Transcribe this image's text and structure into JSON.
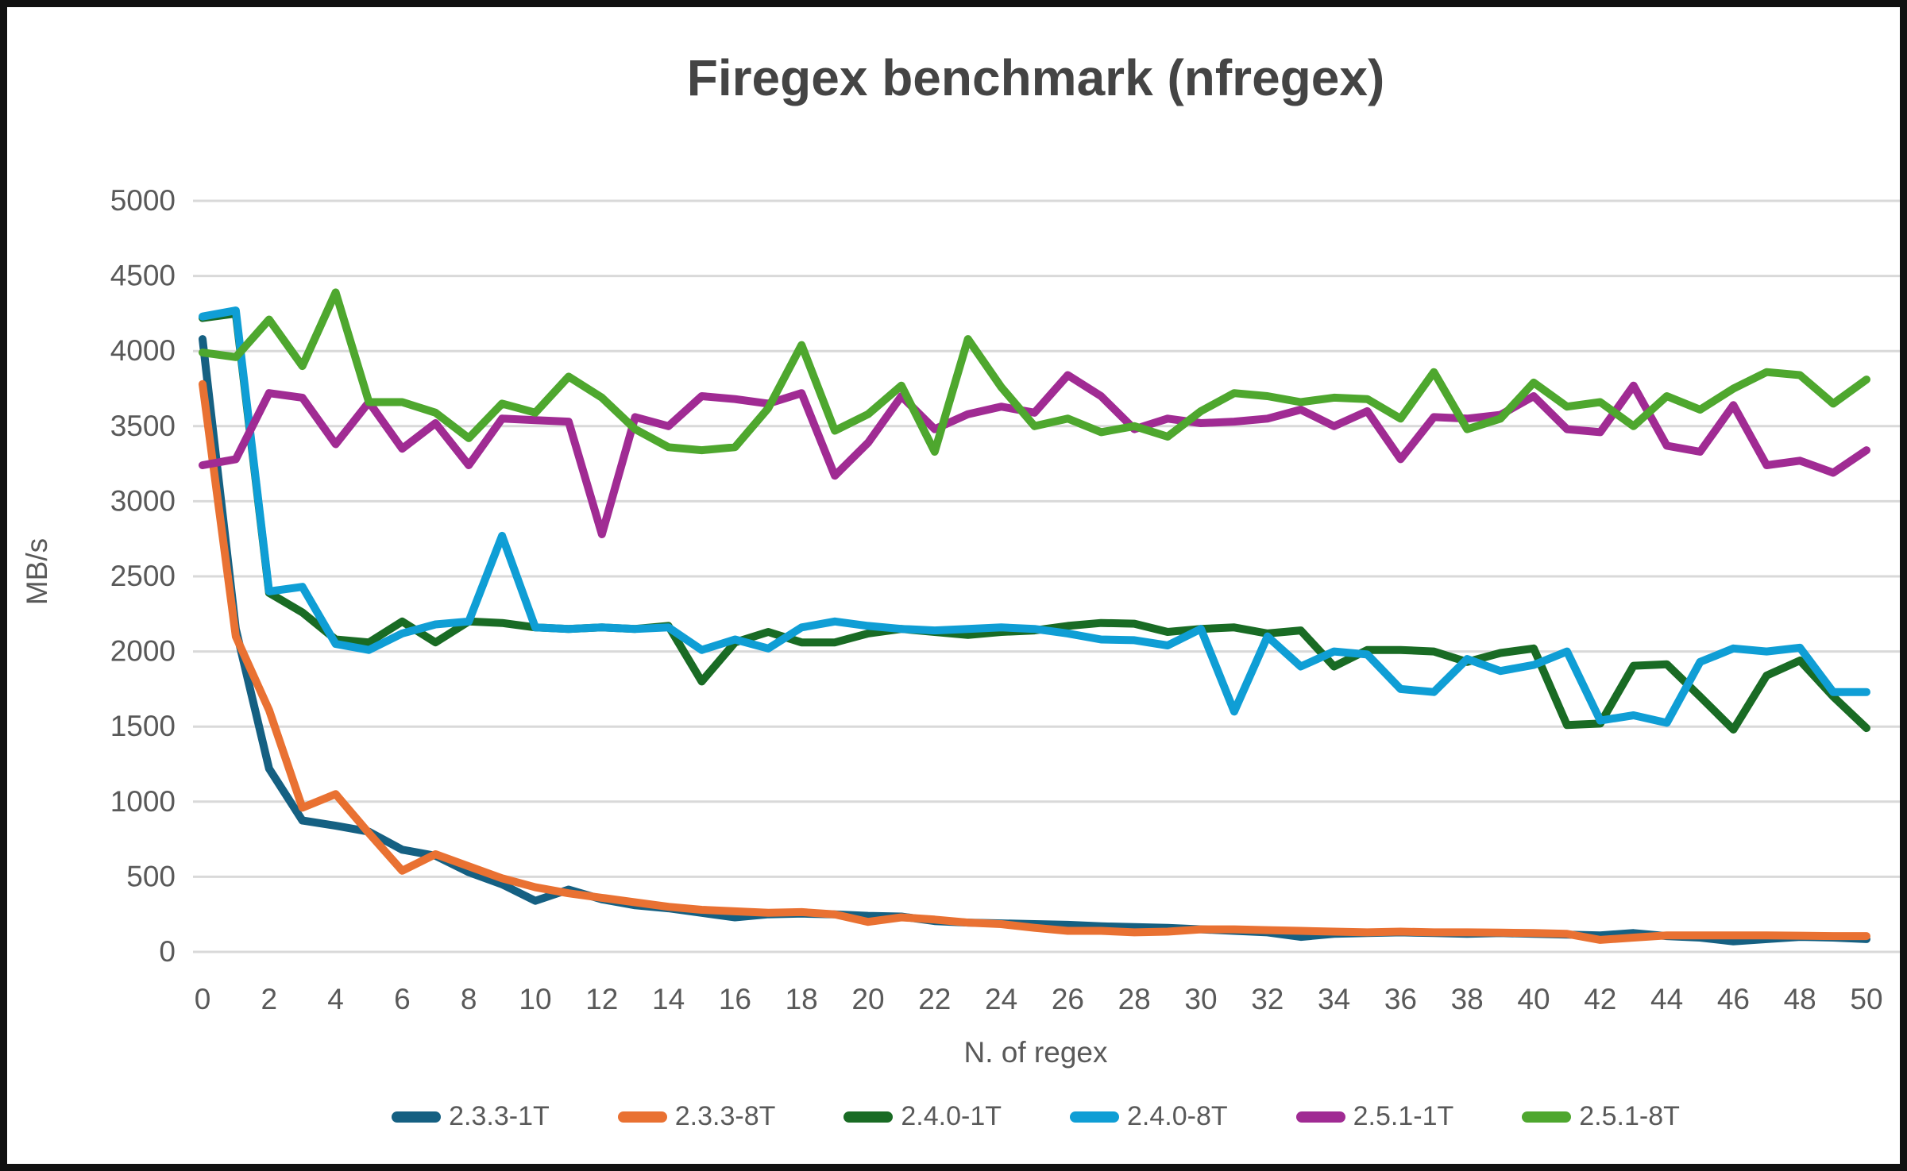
{
  "figure": {
    "title": "Firegex benchmark (nfregex)"
  },
  "chart_data": {
    "type": "line",
    "title": "Firegex benchmark (nfregex)",
    "xlabel": "N. of regex",
    "ylabel": "MB/s",
    "xlim": [
      0,
      50
    ],
    "ylim": [
      0,
      5000
    ],
    "grid": true,
    "legend_position": "bottom",
    "grid_color": "#D9D9D9",
    "tick_label_color": "#595959",
    "yticks": [
      0,
      500,
      1000,
      1500,
      2000,
      2500,
      3000,
      3500,
      4000,
      4500,
      5000
    ],
    "xticks": [
      0,
      2,
      4,
      6,
      8,
      10,
      12,
      14,
      16,
      18,
      20,
      22,
      24,
      26,
      28,
      30,
      32,
      34,
      36,
      38,
      40,
      42,
      44,
      46,
      48,
      50
    ],
    "x": [
      0,
      1,
      2,
      3,
      4,
      5,
      6,
      7,
      8,
      9,
      10,
      11,
      12,
      13,
      14,
      15,
      16,
      17,
      18,
      19,
      20,
      21,
      22,
      23,
      24,
      25,
      26,
      27,
      28,
      29,
      30,
      31,
      32,
      33,
      34,
      35,
      36,
      37,
      38,
      39,
      40,
      41,
      42,
      43,
      44,
      45,
      46,
      47,
      48,
      49,
      50
    ],
    "series": [
      {
        "name": "2.3.3-1T",
        "color": "#156082",
        "values": [
          4080,
          2150,
          1220,
          875,
          840,
          800,
          680,
          640,
          530,
          450,
          340,
          415,
          350,
          310,
          290,
          260,
          230,
          250,
          255,
          250,
          240,
          235,
          205,
          195,
          190,
          185,
          180,
          170,
          165,
          160,
          150,
          140,
          130,
          100,
          120,
          125,
          130,
          125,
          120,
          125,
          120,
          115,
          110,
          125,
          105,
          95,
          70,
          85,
          100,
          95,
          85
        ]
      },
      {
        "name": "2.3.3-8T",
        "color": "#E97132",
        "values": [
          3780,
          2100,
          1610,
          960,
          1050,
          790,
          540,
          650,
          570,
          490,
          430,
          390,
          360,
          330,
          300,
          280,
          270,
          260,
          265,
          250,
          200,
          230,
          215,
          195,
          185,
          160,
          140,
          140,
          130,
          135,
          150,
          150,
          145,
          140,
          135,
          130,
          135,
          130,
          130,
          128,
          125,
          120,
          80,
          95,
          110,
          110,
          110,
          110,
          108,
          105,
          105
        ]
      },
      {
        "name": "2.4.0-1T",
        "color": "#196B24",
        "values": [
          4220,
          4250,
          2390,
          2260,
          2080,
          2060,
          2200,
          2060,
          2200,
          2190,
          2160,
          2150,
          2160,
          2150,
          2170,
          1800,
          2060,
          2130,
          2060,
          2060,
          2120,
          2150,
          2130,
          2110,
          2130,
          2140,
          2170,
          2190,
          2185,
          2130,
          2150,
          2160,
          2120,
          2140,
          1900,
          2010,
          2010,
          2000,
          1930,
          1990,
          2020,
          1510,
          1520,
          1905,
          1915,
          1700,
          1480,
          1840,
          1940,
          1700,
          1490
        ]
      },
      {
        "name": "2.4.0-8T",
        "color": "#0F9ED5",
        "values": [
          4230,
          4270,
          2400,
          2430,
          2050,
          2010,
          2120,
          2180,
          2200,
          2770,
          2160,
          2150,
          2160,
          2150,
          2160,
          2010,
          2080,
          2020,
          2160,
          2200,
          2170,
          2150,
          2140,
          2150,
          2160,
          2150,
          2120,
          2080,
          2075,
          2040,
          2150,
          1600,
          2100,
          1900,
          2000,
          1980,
          1750,
          1730,
          1950,
          1870,
          1910,
          2000,
          1540,
          1575,
          1525,
          1930,
          2020,
          2000,
          2025,
          1730,
          1730
        ]
      },
      {
        "name": "2.5.1-1T",
        "color": "#A02B93",
        "values": [
          3240,
          3280,
          3720,
          3690,
          3380,
          3660,
          3350,
          3520,
          3240,
          3550,
          3540,
          3530,
          2780,
          3560,
          3500,
          3700,
          3680,
          3650,
          3720,
          3170,
          3390,
          3700,
          3480,
          3580,
          3630,
          3590,
          3840,
          3700,
          3480,
          3550,
          3520,
          3530,
          3550,
          3610,
          3500,
          3600,
          3280,
          3560,
          3550,
          3575,
          3700,
          3480,
          3460,
          3770,
          3370,
          3330,
          3640,
          3240,
          3270,
          3190,
          3340
        ]
      },
      {
        "name": "2.5.1-8T",
        "color": "#4EA72E",
        "values": [
          3990,
          3960,
          4210,
          3900,
          4390,
          3660,
          3660,
          3590,
          3420,
          3650,
          3590,
          3830,
          3690,
          3480,
          3360,
          3340,
          3360,
          3620,
          4040,
          3470,
          3580,
          3770,
          3330,
          4080,
          3760,
          3500,
          3550,
          3460,
          3500,
          3430,
          3600,
          3720,
          3700,
          3660,
          3690,
          3680,
          3550,
          3860,
          3480,
          3550,
          3790,
          3630,
          3660,
          3500,
          3700,
          3610,
          3750,
          3860,
          3840,
          3650,
          3810
        ]
      }
    ]
  }
}
